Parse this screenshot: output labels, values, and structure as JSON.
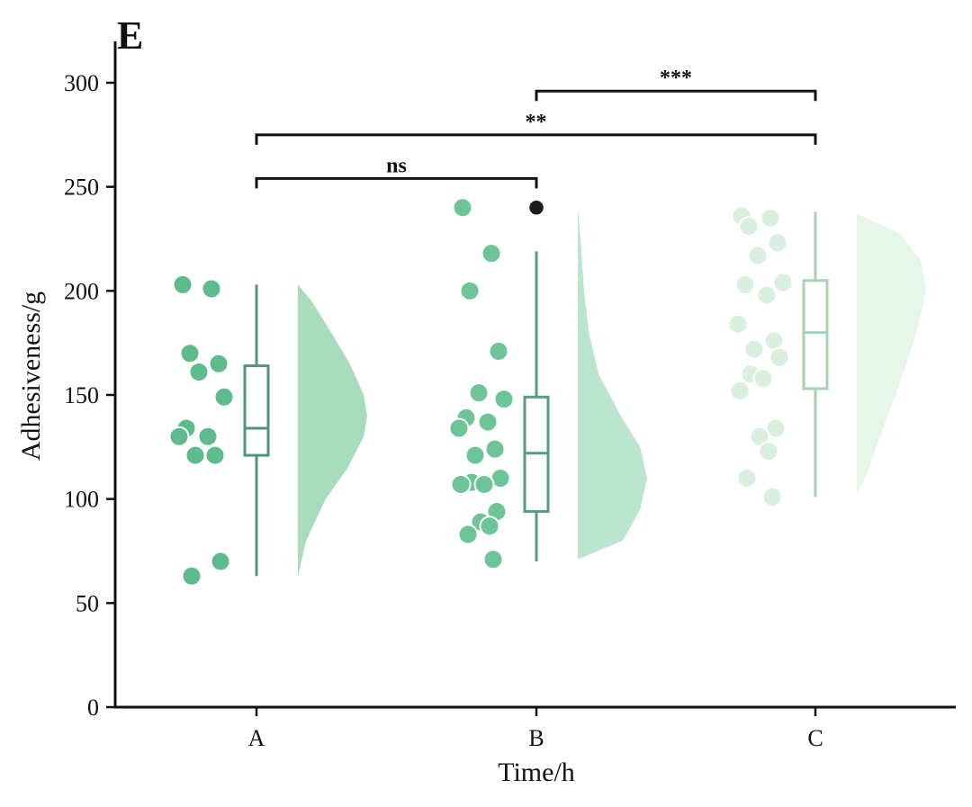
{
  "panel_label": "E",
  "chart_data": {
    "type": "raincloud",
    "xlabel": "Time/h",
    "ylabel": "Adhesiveness/g",
    "ylim": [
      0,
      320
    ],
    "yticks": [
      0,
      50,
      100,
      150,
      200,
      250,
      300
    ],
    "categories": [
      "A",
      "B",
      "C"
    ],
    "groups": [
      {
        "name": "A",
        "color": "#5dbb8c",
        "box_color": "#4e957a",
        "density_color": "#a8dcbc",
        "points": [
          203,
          201,
          170,
          165,
          161,
          149,
          134,
          130,
          130,
          121,
          121,
          70,
          63
        ],
        "box": {
          "whisker_low": 63,
          "q1": 121,
          "median": 134,
          "q3": 164,
          "whisker_high": 203
        },
        "outliers": [],
        "density": [
          [
            63,
            0.0
          ],
          [
            80,
            0.12
          ],
          [
            100,
            0.4
          ],
          [
            115,
            0.72
          ],
          [
            130,
            0.95
          ],
          [
            140,
            1.0
          ],
          [
            150,
            0.95
          ],
          [
            165,
            0.75
          ],
          [
            180,
            0.48
          ],
          [
            195,
            0.2
          ],
          [
            203,
            0.0
          ]
        ]
      },
      {
        "name": "B",
        "color": "#6cc497",
        "box_color": "#5a9c82",
        "density_color": "#bce5cf",
        "points": [
          240,
          218,
          200,
          171,
          151,
          148,
          139,
          137,
          134,
          124,
          121,
          110,
          108,
          107,
          107,
          94,
          89,
          87,
          83,
          71
        ],
        "box": {
          "whisker_low": 70,
          "q1": 94,
          "median": 122,
          "q3": 149,
          "whisker_high": 219
        },
        "outliers": [
          240
        ],
        "density": [
          [
            71,
            0.0
          ],
          [
            80,
            0.65
          ],
          [
            95,
            0.9
          ],
          [
            110,
            1.0
          ],
          [
            125,
            0.9
          ],
          [
            140,
            0.62
          ],
          [
            160,
            0.3
          ],
          [
            180,
            0.16
          ],
          [
            200,
            0.09
          ],
          [
            220,
            0.05
          ],
          [
            240,
            0.0
          ]
        ]
      },
      {
        "name": "C",
        "color": "#d8f0dd",
        "box_color": "#a8d2b5",
        "density_color": "#e6f6e9",
        "points": [
          236,
          235,
          231,
          223,
          217,
          204,
          203,
          198,
          184,
          176,
          172,
          168,
          160,
          158,
          152,
          134,
          130,
          123,
          110,
          101
        ],
        "box": {
          "whisker_low": 101,
          "q1": 153,
          "median": 180,
          "q3": 205,
          "whisker_high": 238
        },
        "outliers": [],
        "density": [
          [
            102,
            0.0
          ],
          [
            110,
            0.12
          ],
          [
            125,
            0.28
          ],
          [
            145,
            0.5
          ],
          [
            165,
            0.72
          ],
          [
            185,
            0.9
          ],
          [
            200,
            1.0
          ],
          [
            215,
            0.92
          ],
          [
            228,
            0.6
          ],
          [
            237,
            0.0
          ]
        ]
      }
    ],
    "significance": [
      {
        "from": "A",
        "to": "B",
        "label": "ns",
        "y": 254
      },
      {
        "from": "A",
        "to": "C",
        "label": "**",
        "y": 275
      },
      {
        "from": "B",
        "to": "C",
        "label": "***",
        "y": 296
      }
    ]
  }
}
